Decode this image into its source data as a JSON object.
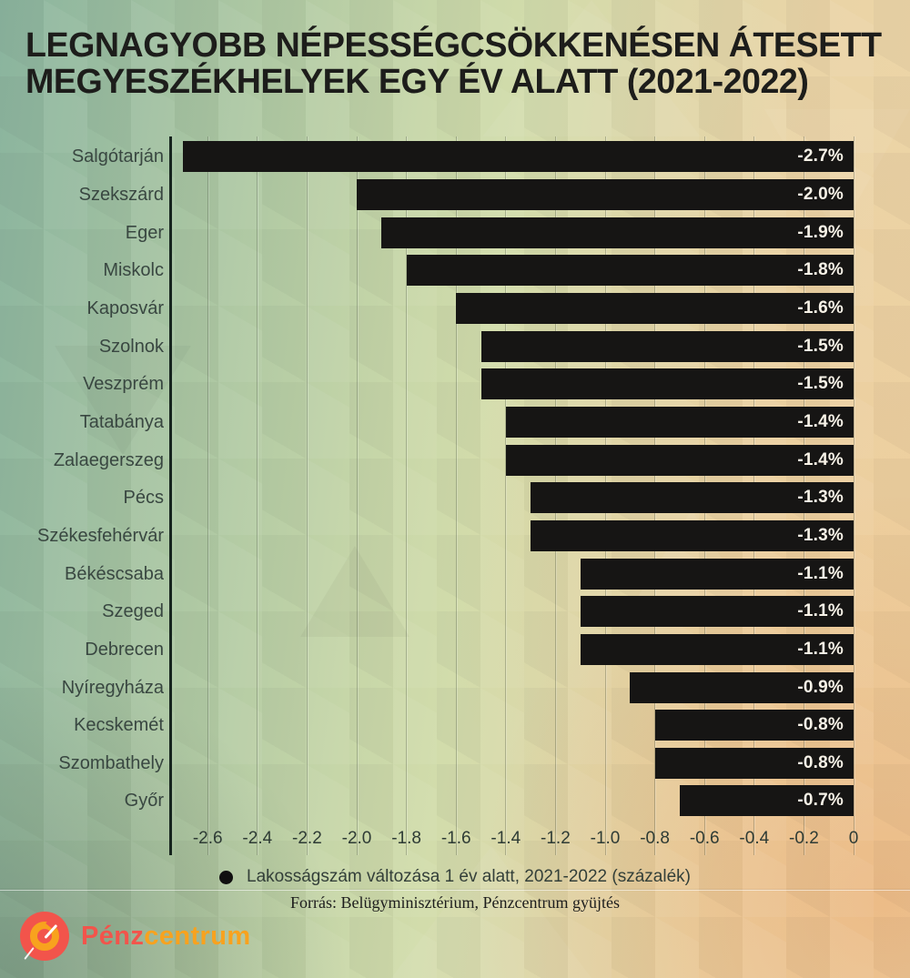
{
  "title": {
    "line1": "LEGNAGYOBB NÉPESSÉGCSÖKKENÉSEN ÁTESETT",
    "line2": "MEGYESZÉKHELYEK EGY ÉV ALATT (2021-2022)"
  },
  "chart_data": {
    "type": "bar",
    "orientation": "horizontal",
    "title": "Legnagyobb népességcsökkenésen átesett megyeszékhelyek egy év alatt (2021-2022)",
    "categories": [
      "Salgótarján",
      "Szekszárd",
      "Eger",
      "Miskolc",
      "Kaposvár",
      "Szolnok",
      "Veszprém",
      "Tatabánya",
      "Zalaegerszeg",
      "Pécs",
      "Székesfehérvár",
      "Békéscsaba",
      "Szeged",
      "Debrecen",
      "Nyíregyháza",
      "Kecskemét",
      "Szombathely",
      "Győr"
    ],
    "values": [
      -2.7,
      -2.0,
      -1.9,
      -1.8,
      -1.6,
      -1.5,
      -1.5,
      -1.4,
      -1.4,
      -1.3,
      -1.3,
      -1.1,
      -1.1,
      -1.1,
      -0.9,
      -0.8,
      -0.8,
      -0.7
    ],
    "value_labels": [
      "-2.7%",
      "-2.0%",
      "-1.9%",
      "-1.8%",
      "-1.6%",
      "-1.5%",
      "-1.5%",
      "-1.4%",
      "-1.4%",
      "-1.3%",
      "-1.3%",
      "-1.1%",
      "-1.1%",
      "-1.1%",
      "-0.9%",
      "-0.8%",
      "-0.8%",
      "-0.7%"
    ],
    "x_tick_values": [
      -2.6,
      -2.4,
      -2.2,
      -2.0,
      -1.8,
      -1.6,
      -1.4,
      -1.2,
      -1.0,
      -0.8,
      -0.6,
      -0.4,
      -0.2,
      0
    ],
    "x_tick_labels": [
      "-2.6",
      "-2.4",
      "-2.2",
      "-2.0",
      "-1.8",
      "-1.6",
      "-1.4",
      "-1.2",
      "-1.0",
      "-0.8",
      "-0.6",
      "-0.4",
      "-0.2",
      "0"
    ],
    "xlim": [
      -2.74,
      0
    ],
    "grid": true,
    "legend_position": "bottom",
    "bar_color": "#161514",
    "value_label_color": "#f7f2e7",
    "unit": "percent"
  },
  "legend": {
    "marker": "black-circle",
    "label": "Lakosságszám változása 1 év alatt, 2021-2022 (százalék)"
  },
  "source": {
    "text": "Forrás: Belügyminisztérium, Pénzcentrum gyüjtés"
  },
  "logo": {
    "text_primary": "Pénz",
    "text_secondary": "centrum",
    "primary_color": "#f2544b",
    "secondary_color": "#f8a21e",
    "icon": "gauge-circle"
  },
  "colors": {
    "background_left": "#8ab49e",
    "background_center": "#d2dcab",
    "background_right": "#eed6a8",
    "background_bottom_right": "#eaba8e",
    "title_text": "#1d1d1b",
    "category_text": "#394741",
    "tick_text": "#2e3b35",
    "axis_line": "#16241e"
  }
}
